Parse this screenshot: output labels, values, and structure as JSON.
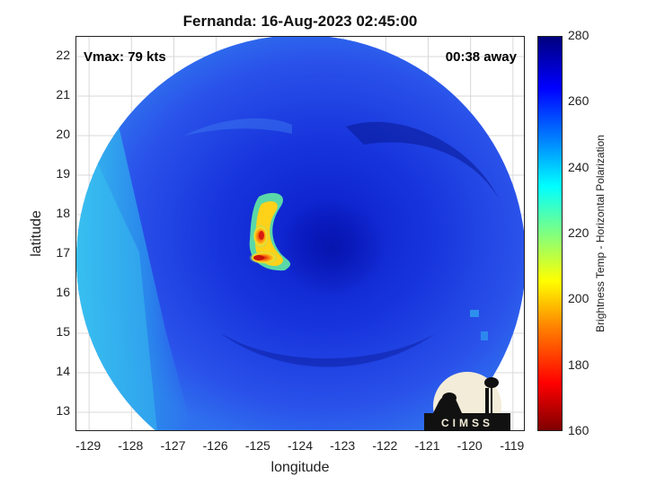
{
  "title": "Fernanda: 16-Aug-2023 02:45:00",
  "vmax_text": "Vmax: 79 kts",
  "time_away_text": "00:38 away",
  "xlabel": "longitude",
  "ylabel": "latitude",
  "colorbar": {
    "label": "Brightness Temp - Horizontal Polarization",
    "ticks": [
      "280",
      "260",
      "240",
      "220",
      "200",
      "180",
      "160"
    ],
    "range": [
      160,
      280
    ]
  },
  "axes": {
    "x_range": [
      -129.3,
      -118.7
    ],
    "y_range": [
      12.5,
      22.5
    ],
    "x_ticks": [
      "-129",
      "-128",
      "-127",
      "-126",
      "-125",
      "-124",
      "-123",
      "-122",
      "-121",
      "-120",
      "-119"
    ],
    "y_ticks": [
      "22",
      "21",
      "20",
      "19",
      "18",
      "17",
      "16",
      "15",
      "14",
      "13"
    ],
    "grid": true
  },
  "storm": {
    "name": "Fernanda",
    "center_lon": -124.3,
    "center_lat": 17.0,
    "eyewall_min_temp_k": 185
  },
  "logo": {
    "text": "CIMSS"
  },
  "colors": {
    "swath_outer": "#2244e8",
    "swath_inner": "#0a1ccf",
    "swath_edge": "#2ab0ee",
    "eyewall_hot": "#d81a10",
    "eyewall_warm": "#ffd21a"
  }
}
